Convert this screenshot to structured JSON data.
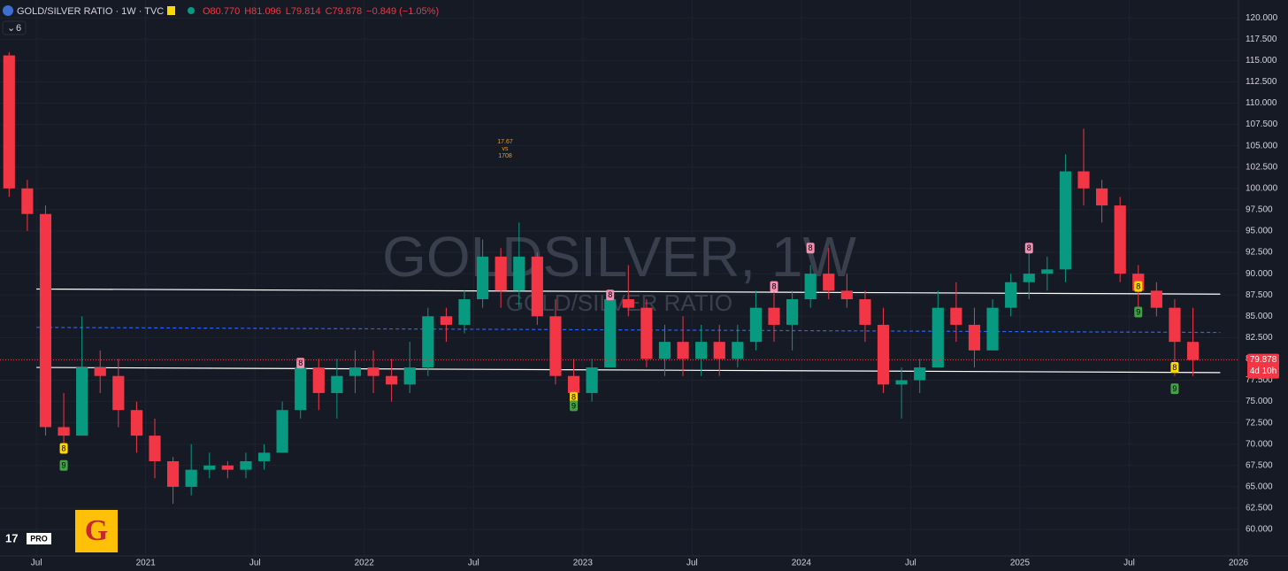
{
  "chart_data": {
    "type": "candlestick",
    "symbol": "GOLD/SILVER RATIO · 1W · TVC",
    "ohlc_legend": [
      "O80.770",
      "H81.096",
      "L79.814",
      "C79.878",
      "−0.849 (−1.05%)"
    ],
    "indicator_count": "6",
    "watermark": "GOLDSILVER, 1W",
    "watermark_sub": "GOLD/SILVER RATIO",
    "annotation": [
      "17.67",
      "vs",
      "1708"
    ],
    "last_price_label": "79.878",
    "countdown": "4d 10h",
    "logo_text": "PRO",
    "badge_text": "G",
    "up_color": "#089981",
    "down_color": "#f23645",
    "grid": true,
    "xlim": [
      "2020-05",
      "2026-01"
    ],
    "xticks": [
      {
        "value": "2020-07",
        "label": "Jul"
      },
      {
        "value": "2021-01",
        "label": "2021"
      },
      {
        "value": "2021-07",
        "label": "Jul"
      },
      {
        "value": "2022-01",
        "label": "2022"
      },
      {
        "value": "2022-07",
        "label": "Jul"
      },
      {
        "value": "2023-01",
        "label": "2023"
      },
      {
        "value": "2023-07",
        "label": "Jul"
      },
      {
        "value": "2024-01",
        "label": "2024"
      },
      {
        "value": "2024-07",
        "label": "Jul"
      },
      {
        "value": "2025-01",
        "label": "2025"
      },
      {
        "value": "2025-07",
        "label": "Jul"
      },
      {
        "value": "2026-01",
        "label": "2026"
      }
    ],
    "ylim": [
      57.2,
      122.1
    ],
    "yticks": [
      {
        "value": 60,
        "label": "60.000"
      },
      {
        "value": 62.5,
        "label": "62.500"
      },
      {
        "value": 65,
        "label": "65.000"
      },
      {
        "value": 67.5,
        "label": "67.500"
      },
      {
        "value": 70,
        "label": "70.000"
      },
      {
        "value": 72.5,
        "label": "72.500"
      },
      {
        "value": 75,
        "label": "75.000"
      },
      {
        "value": 77.5,
        "label": "77.500"
      },
      {
        "value": 80,
        "label": "80.000"
      },
      {
        "value": 82.5,
        "label": "82.500"
      },
      {
        "value": 85,
        "label": "85.000"
      },
      {
        "value": 87.5,
        "label": "87.500"
      },
      {
        "value": 90,
        "label": "90.000"
      },
      {
        "value": 92.5,
        "label": "92.500"
      },
      {
        "value": 95,
        "label": "95.000"
      },
      {
        "value": 97.5,
        "label": "97.500"
      },
      {
        "value": 100,
        "label": "100.000"
      },
      {
        "value": 102.5,
        "label": "102.500"
      },
      {
        "value": 105,
        "label": "105.000"
      },
      {
        "value": 107.5,
        "label": "107.500"
      },
      {
        "value": 110,
        "label": "110.000"
      },
      {
        "value": 112.5,
        "label": "112.500"
      },
      {
        "value": 115,
        "label": "115.000"
      },
      {
        "value": 117.5,
        "label": "117.500"
      },
      {
        "value": 120,
        "label": "120.000"
      }
    ],
    "candles": [
      {
        "x": "2020-05",
        "open": 115.6,
        "high": 116,
        "low": 99,
        "close": 100
      },
      {
        "x": "2020-06",
        "open": 100,
        "high": 101,
        "low": 95,
        "close": 97
      },
      {
        "x": "2020-07",
        "open": 97,
        "high": 98,
        "low": 71,
        "close": 72
      },
      {
        "x": "2020-08",
        "open": 72,
        "high": 76,
        "low": 69,
        "close": 71
      },
      {
        "x": "2020-09",
        "open": 71,
        "high": 85,
        "low": 71,
        "close": 79
      },
      {
        "x": "2020-10",
        "open": 79,
        "high": 81,
        "low": 76,
        "close": 78
      },
      {
        "x": "2020-11",
        "open": 78,
        "high": 80,
        "low": 72,
        "close": 74
      },
      {
        "x": "2020-12",
        "open": 74,
        "high": 75,
        "low": 69,
        "close": 71
      },
      {
        "x": "2021-01",
        "open": 71,
        "high": 73,
        "low": 66,
        "close": 68
      },
      {
        "x": "2021-02",
        "open": 68,
        "high": 68.5,
        "low": 63,
        "close": 65
      },
      {
        "x": "2021-03",
        "open": 65,
        "high": 70,
        "low": 64,
        "close": 67
      },
      {
        "x": "2021-04",
        "open": 67,
        "high": 69,
        "low": 66,
        "close": 67.5
      },
      {
        "x": "2021-05",
        "open": 67.5,
        "high": 68,
        "low": 66,
        "close": 67
      },
      {
        "x": "2021-06",
        "open": 67,
        "high": 69,
        "low": 66,
        "close": 68
      },
      {
        "x": "2021-07",
        "open": 68,
        "high": 70,
        "low": 67,
        "close": 69
      },
      {
        "x": "2021-08",
        "open": 69,
        "high": 75,
        "low": 69,
        "close": 74
      },
      {
        "x": "2021-09",
        "open": 74,
        "high": 80,
        "low": 73,
        "close": 79
      },
      {
        "x": "2021-10",
        "open": 79,
        "high": 80,
        "low": 74,
        "close": 76
      },
      {
        "x": "2021-11",
        "open": 76,
        "high": 80,
        "low": 73,
        "close": 78
      },
      {
        "x": "2021-12",
        "open": 78,
        "high": 81,
        "low": 76,
        "close": 79
      },
      {
        "x": "2022-01",
        "open": 79,
        "high": 81,
        "low": 76,
        "close": 78
      },
      {
        "x": "2022-02",
        "open": 78,
        "high": 80,
        "low": 75,
        "close": 77
      },
      {
        "x": "2022-03",
        "open": 77,
        "high": 82,
        "low": 76,
        "close": 79
      },
      {
        "x": "2022-04",
        "open": 79,
        "high": 86,
        "low": 78,
        "close": 85
      },
      {
        "x": "2022-05",
        "open": 85,
        "high": 86,
        "low": 82,
        "close": 84
      },
      {
        "x": "2022-06",
        "open": 84,
        "high": 88,
        "low": 83,
        "close": 87
      },
      {
        "x": "2022-07",
        "open": 87,
        "high": 94,
        "low": 86,
        "close": 92
      },
      {
        "x": "2022-08",
        "open": 92,
        "high": 93,
        "low": 86,
        "close": 88
      },
      {
        "x": "2022-09",
        "open": 88,
        "high": 96,
        "low": 86,
        "close": 92
      },
      {
        "x": "2022-10",
        "open": 92,
        "high": 92.5,
        "low": 84,
        "close": 85
      },
      {
        "x": "2022-11",
        "open": 85,
        "high": 87,
        "low": 77,
        "close": 78
      },
      {
        "x": "2022-12",
        "open": 78,
        "high": 80,
        "low": 74,
        "close": 76
      },
      {
        "x": "2023-01",
        "open": 76,
        "high": 80,
        "low": 75,
        "close": 79
      },
      {
        "x": "2023-02",
        "open": 79,
        "high": 88,
        "low": 79,
        "close": 87
      },
      {
        "x": "2023-03",
        "open": 87,
        "high": 91,
        "low": 85,
        "close": 86
      },
      {
        "x": "2023-04",
        "open": 86,
        "high": 87,
        "low": 79,
        "close": 80
      },
      {
        "x": "2023-05",
        "open": 80,
        "high": 84,
        "low": 78,
        "close": 82
      },
      {
        "x": "2023-06",
        "open": 82,
        "high": 85,
        "low": 78,
        "close": 80
      },
      {
        "x": "2023-07",
        "open": 80,
        "high": 84,
        "low": 78,
        "close": 82
      },
      {
        "x": "2023-08",
        "open": 82,
        "high": 84,
        "low": 78,
        "close": 80
      },
      {
        "x": "2023-09",
        "open": 80,
        "high": 84,
        "low": 79,
        "close": 82
      },
      {
        "x": "2023-10",
        "open": 82,
        "high": 88,
        "low": 81,
        "close": 86
      },
      {
        "x": "2023-11",
        "open": 86,
        "high": 88,
        "low": 82,
        "close": 84
      },
      {
        "x": "2023-12",
        "open": 84,
        "high": 88,
        "low": 81,
        "close": 87
      },
      {
        "x": "2024-01",
        "open": 87,
        "high": 91,
        "low": 86,
        "close": 90
      },
      {
        "x": "2024-02",
        "open": 90,
        "high": 93,
        "low": 87,
        "close": 88
      },
      {
        "x": "2024-03",
        "open": 88,
        "high": 90,
        "low": 86,
        "close": 87
      },
      {
        "x": "2024-04",
        "open": 87,
        "high": 88,
        "low": 82,
        "close": 84
      },
      {
        "x": "2024-05",
        "open": 84,
        "high": 86,
        "low": 76,
        "close": 77
      },
      {
        "x": "2024-06",
        "open": 77,
        "high": 79,
        "low": 73,
        "close": 77.5
      },
      {
        "x": "2024-07",
        "open": 77.5,
        "high": 80,
        "low": 76,
        "close": 79
      },
      {
        "x": "2024-08",
        "open": 79,
        "high": 88,
        "low": 79,
        "close": 86
      },
      {
        "x": "2024-09",
        "open": 86,
        "high": 89,
        "low": 82,
        "close": 84
      },
      {
        "x": "2024-10",
        "open": 84,
        "high": 86,
        "low": 79,
        "close": 81
      },
      {
        "x": "2024-11",
        "open": 81,
        "high": 87,
        "low": 81,
        "close": 86
      },
      {
        "x": "2024-12",
        "open": 86,
        "high": 90,
        "low": 85,
        "close": 89
      },
      {
        "x": "2025-01",
        "open": 89,
        "high": 93,
        "low": 87,
        "close": 90
      },
      {
        "x": "2025-02",
        "open": 90,
        "high": 92,
        "low": 88,
        "close": 90.5
      },
      {
        "x": "2025-03",
        "open": 90.5,
        "high": 104,
        "low": 89,
        "close": 102
      },
      {
        "x": "2025-04",
        "open": 102,
        "high": 107,
        "low": 98,
        "close": 100
      },
      {
        "x": "2025-05",
        "open": 100,
        "high": 101,
        "low": 96,
        "close": 98
      },
      {
        "x": "2025-06",
        "open": 98,
        "high": 99,
        "low": 89,
        "close": 90
      },
      {
        "x": "2025-07",
        "open": 90,
        "high": 91,
        "low": 86,
        "close": 88
      },
      {
        "x": "2025-08",
        "open": 88,
        "high": 89,
        "low": 85,
        "close": 86
      },
      {
        "x": "2025-09",
        "open": 86,
        "high": 87,
        "low": 78,
        "close": 82
      },
      {
        "x": "2025-10",
        "open": 82,
        "high": 86,
        "low": 78,
        "close": 79.878
      }
    ],
    "lines": [
      {
        "x": [
          "2020-07",
          "2025-12"
        ],
        "y": [
          88.2,
          87.6
        ],
        "color": "#ffffff",
        "style": "solid"
      },
      {
        "x": [
          "2020-07",
          "2025-12"
        ],
        "y": [
          79.0,
          78.4
        ],
        "color": "#ffffff",
        "style": "solid"
      },
      {
        "x": [
          "2020-07",
          "2025-12"
        ],
        "y": [
          83.7,
          83.1
        ],
        "color": "#2962ff",
        "style": "dashed"
      }
    ],
    "markers": [
      {
        "x": "2020-08",
        "y": 69.5,
        "text": "8",
        "color": "#ffd600"
      },
      {
        "x": "2020-08",
        "y": 67.5,
        "text": "9",
        "color": "#43a047"
      },
      {
        "x": "2021-09",
        "y": 79.5,
        "text": "8",
        "color": "#f48fb1"
      },
      {
        "x": "2022-12",
        "y": 75.5,
        "text": "8",
        "color": "#ffd600"
      },
      {
        "x": "2022-12",
        "y": 74.5,
        "text": "9",
        "color": "#43a047"
      },
      {
        "x": "2023-02",
        "y": 87.5,
        "text": "8",
        "color": "#f48fb1"
      },
      {
        "x": "2023-11",
        "y": 88.5,
        "text": "8",
        "color": "#f48fb1"
      },
      {
        "x": "2024-01",
        "y": 93,
        "text": "8",
        "color": "#f48fb1"
      },
      {
        "x": "2025-01",
        "y": 93,
        "text": "8",
        "color": "#f48fb1"
      },
      {
        "x": "2025-07",
        "y": 88.5,
        "text": "8",
        "color": "#ffd600"
      },
      {
        "x": "2025-07",
        "y": 85.5,
        "text": "9",
        "color": "#43a047"
      },
      {
        "x": "2025-09",
        "y": 79,
        "text": "8",
        "color": "#ffd600"
      },
      {
        "x": "2025-09",
        "y": 76.5,
        "text": "9",
        "color": "#43a047"
      }
    ]
  }
}
